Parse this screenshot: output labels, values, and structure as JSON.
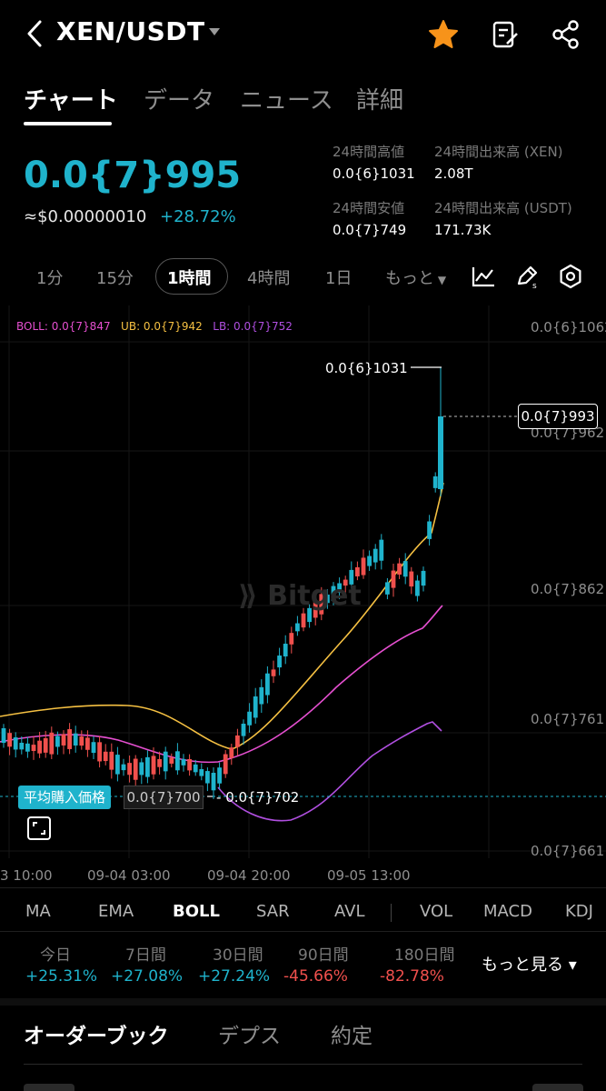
{
  "header": {
    "pair": "XEN/USDT"
  },
  "tabs": [
    "チャート",
    "データ",
    "ニュース",
    "詳細"
  ],
  "price": {
    "last": "0.0{7}995",
    "usd": "≈$0.00000010",
    "change": "+28.72%"
  },
  "stats": {
    "high_label": "24時間高値",
    "high": "0.0{6}1031",
    "low_label": "24時間安値",
    "low": "0.0{7}749",
    "vol_xen_label": "24時間出来高 (XEN)",
    "vol_xen": "2.08T",
    "vol_usdt_label": "24時間出来高 (USDT)",
    "vol_usdt": "171.73K"
  },
  "intervals": [
    "1分",
    "15分",
    "1時間",
    "4時間",
    "1日"
  ],
  "more": "もっと",
  "chart": {
    "boll": "BOLL: 0.0{7}847",
    "ub": "UB: 0.0{7}942",
    "lb": "LB: 0.0{7}752",
    "high_marker": "0.0{6}1031",
    "low_marker": "0.0{7}702",
    "current_tag": "0.0{7}993",
    "avg_label": "平均購入価格",
    "avg_value": "0.0{7}700",
    "y_ticks": [
      "0.0{6}1062",
      "0.0{7}962",
      "0.0{7}862",
      "0.0{7}761",
      "0.0{7}661"
    ],
    "x_ticks": [
      "3 10:00",
      "09-04 03:00",
      "09-04 20:00",
      "09-05 13:00"
    ],
    "watermark": "Bitget",
    "colors": {
      "up": "#1fb3cc",
      "down": "#f0504d",
      "ub": "#f5c042",
      "mid": "#e54fd0",
      "lb": "#b04fe0"
    }
  },
  "indicators": [
    "MA",
    "EMA",
    "BOLL",
    "SAR",
    "AVL",
    "VOL",
    "MACD",
    "KDJ"
  ],
  "performance": [
    {
      "label": "今日",
      "value": "+25.31%",
      "dir": "pos"
    },
    {
      "label": "7日間",
      "value": "+27.08%",
      "dir": "pos"
    },
    {
      "label": "30日間",
      "value": "+27.24%",
      "dir": "pos"
    },
    {
      "label": "90日間",
      "value": "-45.66%",
      "dir": "neg"
    },
    {
      "label": "180日間",
      "value": "-82.78%",
      "dir": "neg"
    }
  ],
  "more_see": "もっと見る ▾",
  "bottom_tabs": [
    "オーダーブック",
    "デプス",
    "約定"
  ]
}
